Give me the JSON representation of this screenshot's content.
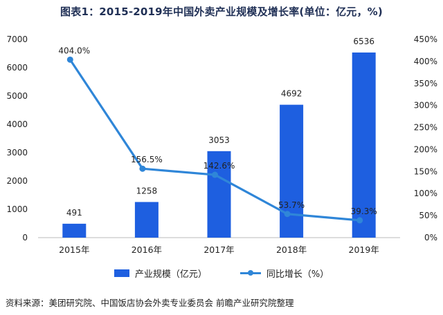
{
  "chart_data": {
    "type": "bar+line",
    "title": "图表1：2015-2019年中国外卖产业规模及增长率(单位：亿元，%)",
    "categories": [
      "2015年",
      "2016年",
      "2017年",
      "2018年",
      "2019年"
    ],
    "series": [
      {
        "name": "产业规模（亿元）",
        "type": "bar",
        "axis": "left",
        "values": [
          491,
          1258,
          3053,
          4692,
          6536
        ],
        "labels": [
          "491",
          "1258",
          "3053",
          "4692",
          "6536"
        ],
        "color": "#1e5fe0"
      },
      {
        "name": "同比增长（%）",
        "type": "line",
        "axis": "right",
        "values": [
          404.0,
          156.5,
          142.6,
          53.7,
          39.3
        ],
        "labels": [
          "404.0%",
          "156.5%",
          "142.6%",
          "53.7%",
          "39.3%"
        ],
        "color": "#2f86d8"
      }
    ],
    "y_left": {
      "min": 0,
      "max": 7000,
      "ticks": [
        "0",
        "1000",
        "2000",
        "3000",
        "4000",
        "5000",
        "6000",
        "7000"
      ],
      "tick_values": [
        0,
        1000,
        2000,
        3000,
        4000,
        5000,
        6000,
        7000
      ]
    },
    "y_right": {
      "min": 0,
      "max": 450,
      "ticks": [
        "0%",
        "50%",
        "100%",
        "150%",
        "200%",
        "250%",
        "300%",
        "350%",
        "400%",
        "450%"
      ],
      "tick_values": [
        0,
        50,
        100,
        150,
        200,
        250,
        300,
        350,
        400,
        450
      ]
    },
    "grid": false,
    "legend_position": "bottom"
  },
  "legend": {
    "bar_label": "产业规模（亿元）",
    "line_label": "同比增长（%）"
  },
  "source": "资料来源：美团研究院、中国饭店协会外卖专业委员会 前瞻产业研究院整理"
}
